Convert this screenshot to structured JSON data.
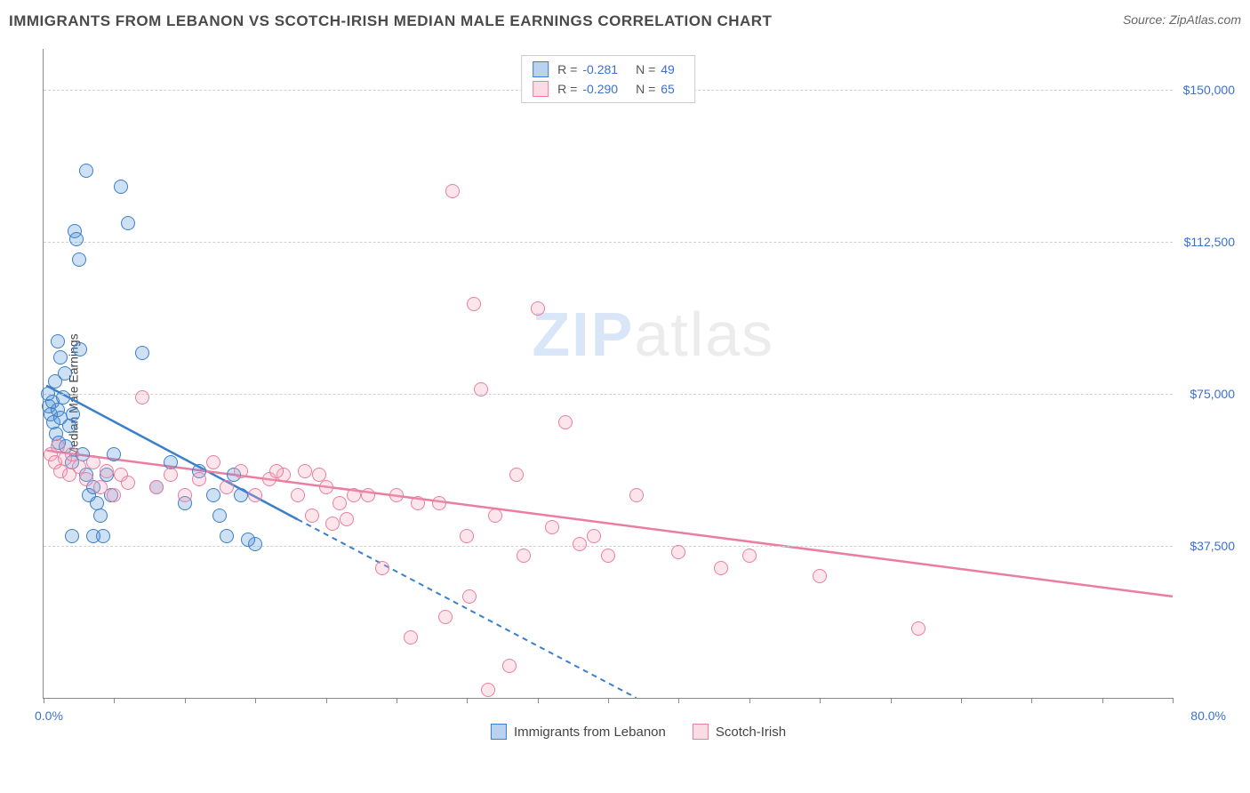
{
  "header": {
    "title": "IMMIGRANTS FROM LEBANON VS SCOTCH-IRISH MEDIAN MALE EARNINGS CORRELATION CHART",
    "source_prefix": "Source: ",
    "source_name": "ZipAtlas.com"
  },
  "watermark": {
    "part1": "ZIP",
    "part2": "atlas"
  },
  "chart": {
    "type": "scatter",
    "background_color": "#ffffff",
    "grid_color": "#d0d0d0",
    "axis_color": "#888888",
    "y_axis_label": "Median Male Earnings",
    "xlim": [
      0,
      80
    ],
    "ylim": [
      0,
      160000
    ],
    "x_tick_positions": [
      0,
      5,
      10,
      15,
      20,
      25,
      30,
      35,
      40,
      45,
      50,
      55,
      60,
      65,
      70,
      75,
      80
    ],
    "x_min_label": "0.0%",
    "x_max_label": "80.0%",
    "y_ticks": [
      {
        "value": 37500,
        "label": "$37,500"
      },
      {
        "value": 75000,
        "label": "$75,000"
      },
      {
        "value": 112500,
        "label": "$112,500"
      },
      {
        "value": 150000,
        "label": "$150,000"
      }
    ],
    "marker_radius": 8,
    "marker_border_width": 1.5,
    "marker_fill_opacity": 0.28,
    "trend_line_width": 2.5,
    "series": [
      {
        "name": "Immigrants from Lebanon",
        "color": "#4d8fd6",
        "stroke": "#3b7fc9",
        "stats": {
          "R": "-0.281",
          "N": "49"
        },
        "trend": {
          "x1": 0.2,
          "y1": 77000,
          "x_solid_end": 18,
          "y_solid_end": 44000,
          "x2": 42,
          "y2": 0
        },
        "points": [
          [
            0.3,
            75000
          ],
          [
            0.4,
            72000
          ],
          [
            0.5,
            70000
          ],
          [
            0.6,
            73000
          ],
          [
            0.7,
            68000
          ],
          [
            0.8,
            78000
          ],
          [
            0.9,
            65000
          ],
          [
            1.0,
            71000
          ],
          [
            1.1,
            63000
          ],
          [
            1.2,
            69000
          ],
          [
            1.4,
            74000
          ],
          [
            1.5,
            80000
          ],
          [
            1.6,
            62000
          ],
          [
            1.8,
            67000
          ],
          [
            2.0,
            58000
          ],
          [
            2.1,
            70000
          ],
          [
            2.2,
            115000
          ],
          [
            2.3,
            113000
          ],
          [
            2.5,
            108000
          ],
          [
            2.6,
            86000
          ],
          [
            2.8,
            60000
          ],
          [
            3.0,
            55000
          ],
          [
            3.2,
            50000
          ],
          [
            3.5,
            52000
          ],
          [
            3.8,
            48000
          ],
          [
            4.0,
            45000
          ],
          [
            4.2,
            40000
          ],
          [
            4.5,
            55000
          ],
          [
            4.8,
            50000
          ],
          [
            5.0,
            60000
          ],
          [
            5.5,
            126000
          ],
          [
            3.0,
            130000
          ],
          [
            6.0,
            117000
          ],
          [
            7.0,
            85000
          ],
          [
            8.0,
            52000
          ],
          [
            9.0,
            58000
          ],
          [
            10.0,
            48000
          ],
          [
            11.0,
            56000
          ],
          [
            12.0,
            50000
          ],
          [
            12.5,
            45000
          ],
          [
            13.0,
            40000
          ],
          [
            14.0,
            50000
          ],
          [
            15.0,
            38000
          ],
          [
            2.0,
            40000
          ],
          [
            3.5,
            40000
          ],
          [
            1.0,
            88000
          ],
          [
            1.2,
            84000
          ],
          [
            13.5,
            55000
          ],
          [
            14.5,
            39000
          ]
        ]
      },
      {
        "name": "Scotch-Irish",
        "color": "#f4a6bc",
        "stroke": "#ea7da0",
        "stats": {
          "R": "-0.290",
          "N": "65"
        },
        "trend": {
          "x1": 0.2,
          "y1": 61000,
          "x_solid_end": 80,
          "y_solid_end": 25000,
          "x2": 80,
          "y2": 25000
        },
        "points": [
          [
            0.5,
            60000
          ],
          [
            0.8,
            58000
          ],
          [
            1.0,
            62000
          ],
          [
            1.2,
            56000
          ],
          [
            1.5,
            59000
          ],
          [
            1.8,
            55000
          ],
          [
            2.0,
            60000
          ],
          [
            2.5,
            57000
          ],
          [
            3.0,
            54000
          ],
          [
            3.5,
            58000
          ],
          [
            4.0,
            52000
          ],
          [
            4.5,
            56000
          ],
          [
            5.0,
            50000
          ],
          [
            5.5,
            55000
          ],
          [
            6.0,
            53000
          ],
          [
            7.0,
            74000
          ],
          [
            8.0,
            52000
          ],
          [
            9.0,
            55000
          ],
          [
            10.0,
            50000
          ],
          [
            11.0,
            54000
          ],
          [
            12.0,
            58000
          ],
          [
            13.0,
            52000
          ],
          [
            14.0,
            56000
          ],
          [
            15.0,
            50000
          ],
          [
            16.0,
            54000
          ],
          [
            17.0,
            55000
          ],
          [
            18.0,
            50000
          ],
          [
            19.0,
            45000
          ],
          [
            20.0,
            52000
          ],
          [
            21.0,
            48000
          ],
          [
            22.0,
            50000
          ],
          [
            24.0,
            32000
          ],
          [
            25.0,
            50000
          ],
          [
            26.0,
            15000
          ],
          [
            28.0,
            48000
          ],
          [
            29.0,
            125000
          ],
          [
            30.0,
            40000
          ],
          [
            30.5,
            97000
          ],
          [
            31.0,
            76000
          ],
          [
            32.0,
            45000
          ],
          [
            33.0,
            8000
          ],
          [
            34.0,
            35000
          ],
          [
            35.0,
            96000
          ],
          [
            36.0,
            42000
          ],
          [
            37.0,
            68000
          ],
          [
            38.0,
            38000
          ],
          [
            39.0,
            40000
          ],
          [
            40.0,
            35000
          ],
          [
            42.0,
            50000
          ],
          [
            45.0,
            36000
          ],
          [
            48.0,
            32000
          ],
          [
            50.0,
            35000
          ],
          [
            55.0,
            30000
          ],
          [
            28.5,
            20000
          ],
          [
            62.0,
            17000
          ],
          [
            30.2,
            25000
          ],
          [
            31.5,
            2000
          ],
          [
            33.5,
            55000
          ],
          [
            20.5,
            43000
          ],
          [
            21.5,
            44000
          ],
          [
            18.5,
            56000
          ],
          [
            19.5,
            55000
          ],
          [
            16.5,
            56000
          ],
          [
            23.0,
            50000
          ],
          [
            26.5,
            48000
          ]
        ]
      }
    ],
    "legend_bottom": [
      {
        "swatch_color": "#4d8fd6",
        "swatch_stroke": "#3b7fc9",
        "label": "Immigrants from Lebanon"
      },
      {
        "swatch_color": "#f4a6bc",
        "swatch_stroke": "#ea7da0",
        "label": "Scotch-Irish"
      }
    ]
  }
}
